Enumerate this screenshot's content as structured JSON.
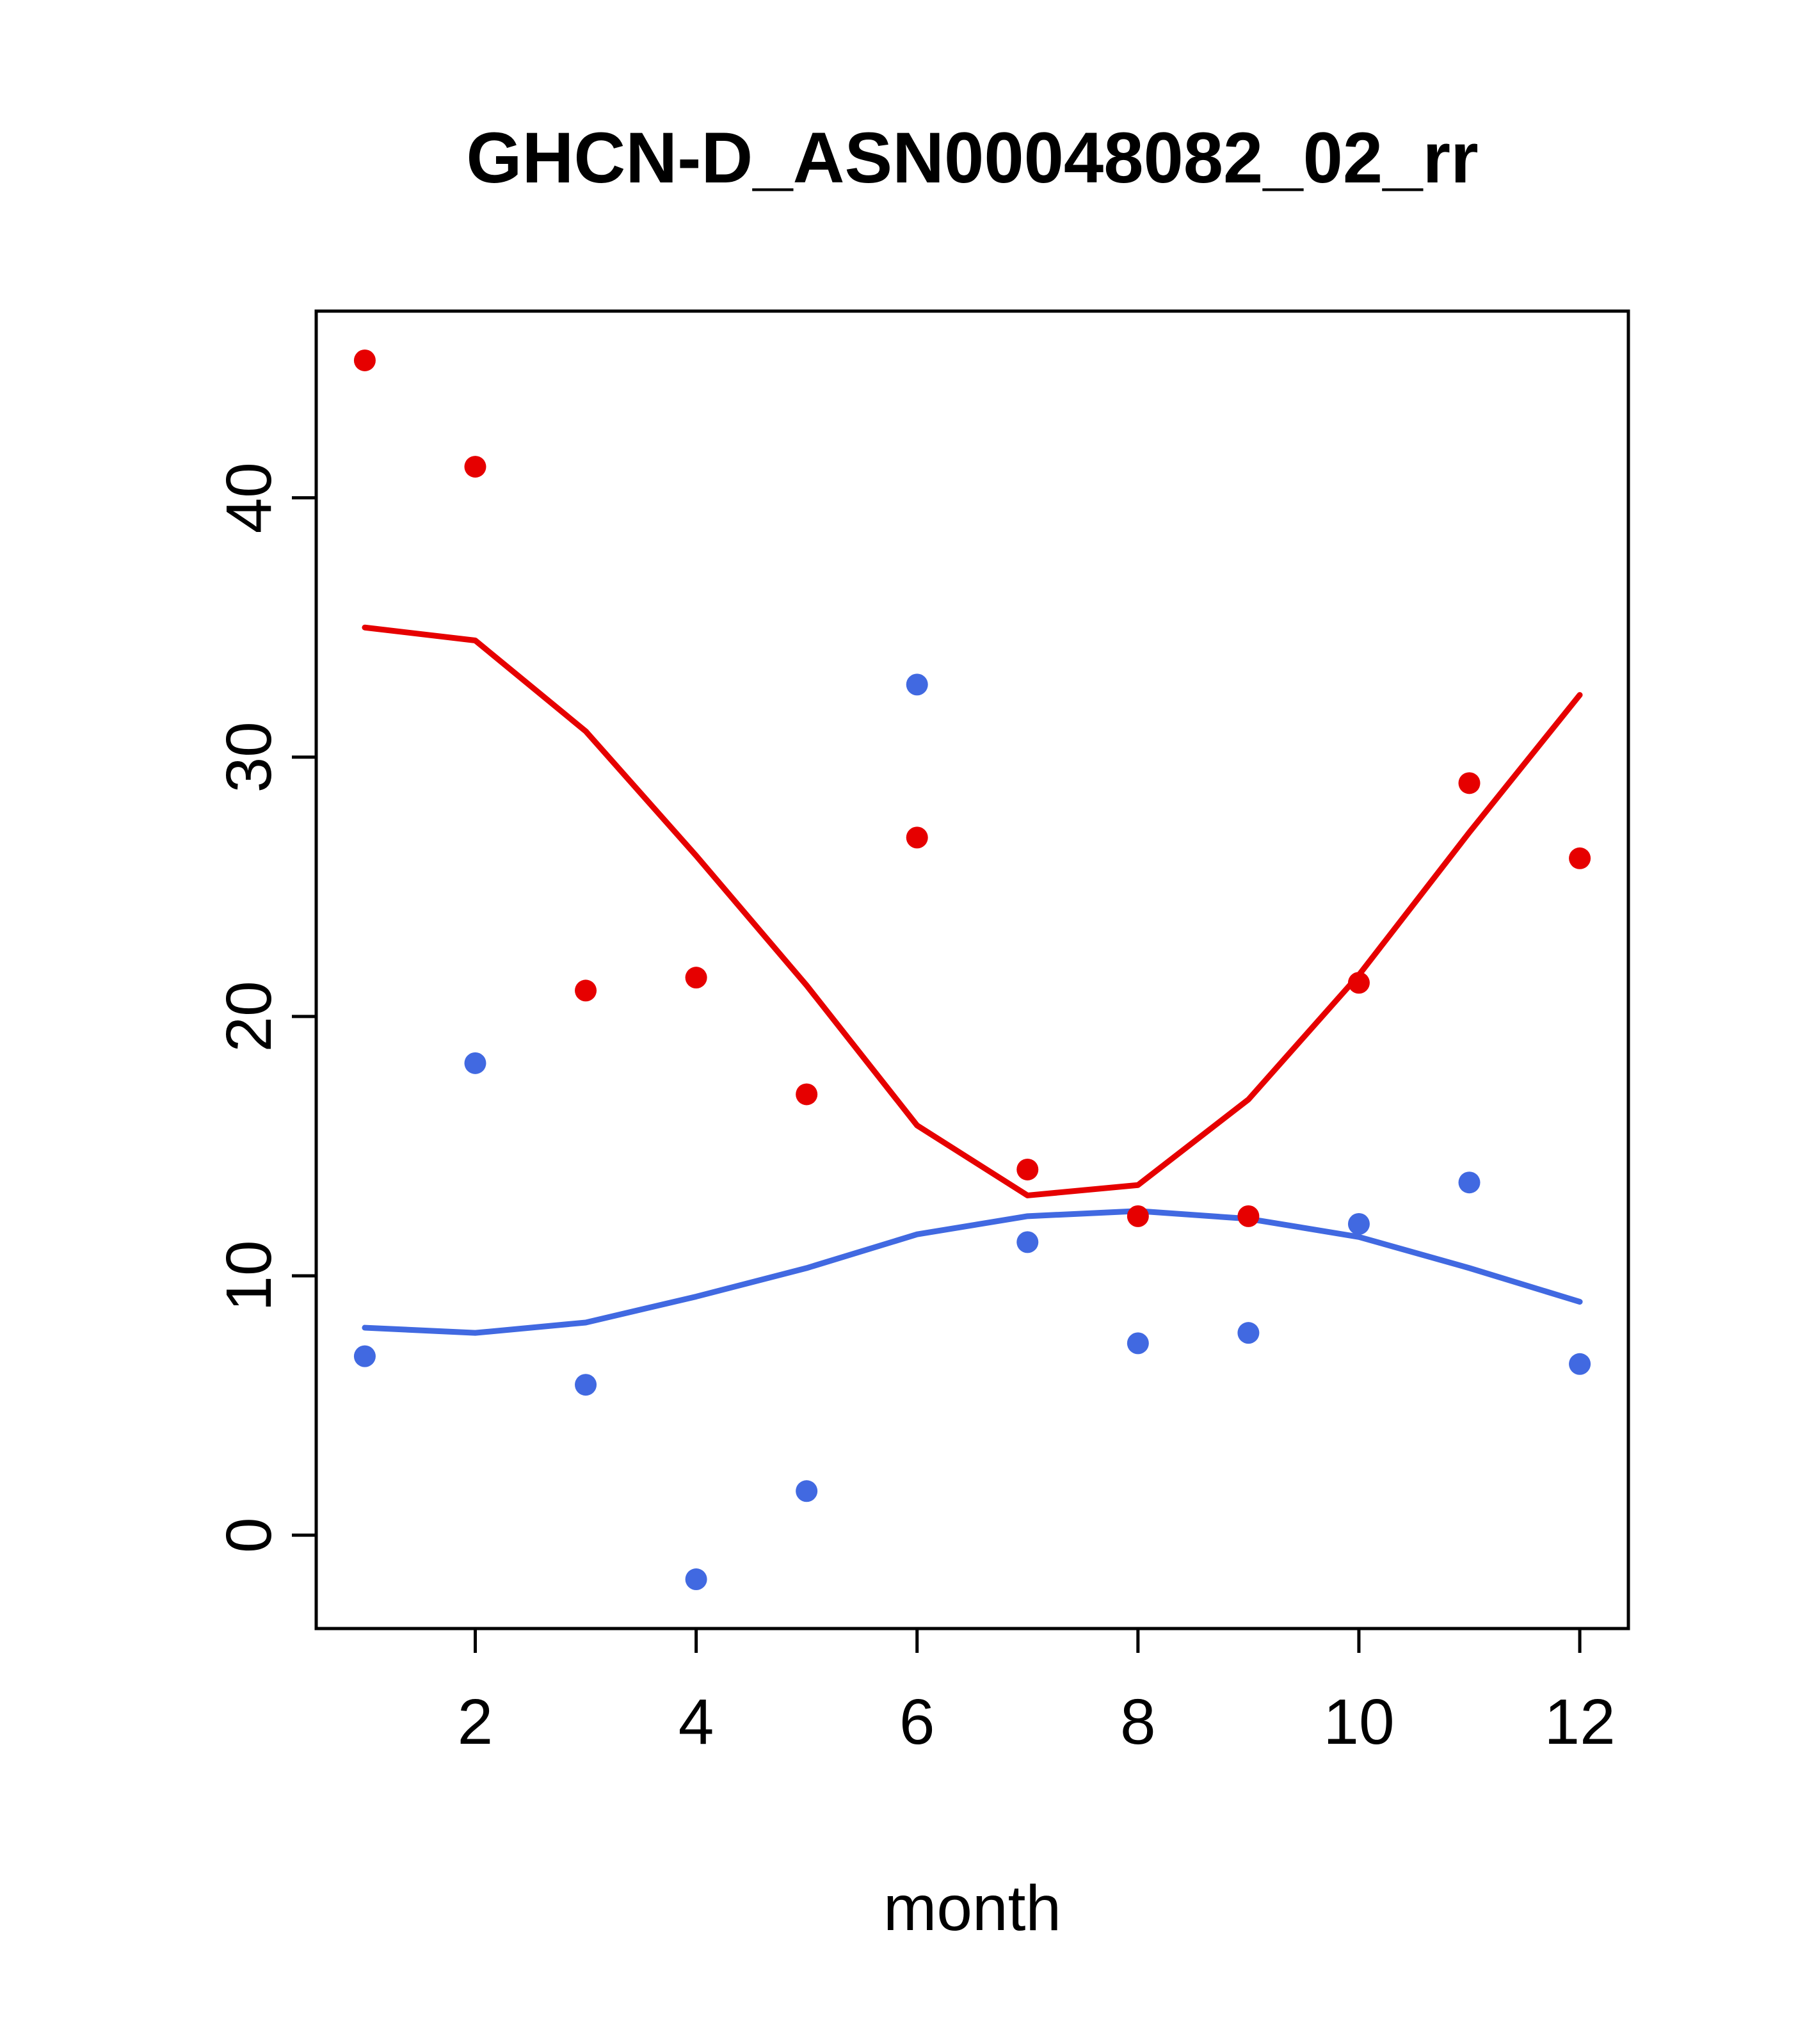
{
  "title": "GHCN-D_ASN00048082_02_rr",
  "chart_data": {
    "type": "scatter",
    "title": "GHCN-D_ASN00048082_02_rr",
    "xlabel": "month",
    "ylabel": "",
    "x_ticks": [
      2,
      4,
      6,
      8,
      10,
      12
    ],
    "y_ticks": [
      0,
      10,
      20,
      30,
      40
    ],
    "x_range": [
      0.56,
      12.44
    ],
    "y_range": [
      -3.6,
      47.2
    ],
    "grid": "off",
    "legend": "none",
    "months": [
      1,
      2,
      3,
      4,
      5,
      6,
      7,
      8,
      9,
      10,
      11,
      12
    ],
    "colors": {
      "red": "#e60000",
      "blue": "#4169e1"
    },
    "series": [
      {
        "name": "red-trend-line",
        "kind": "line",
        "color": "#e60000",
        "values": [
          35.0,
          34.5,
          31.0,
          26.2,
          21.2,
          15.8,
          13.1,
          13.5,
          16.8,
          21.6,
          27.1,
          32.4
        ]
      },
      {
        "name": "blue-trend-line",
        "kind": "line",
        "color": "#4169e1",
        "values": [
          8.0,
          7.8,
          8.2,
          9.2,
          10.3,
          11.6,
          12.3,
          12.5,
          12.2,
          11.5,
          10.3,
          9.0
        ]
      },
      {
        "name": "red-points",
        "kind": "points",
        "color": "#e60000",
        "values": [
          45.3,
          41.2,
          21.0,
          21.5,
          17.0,
          26.9,
          14.1,
          12.3,
          12.3,
          21.3,
          29.0,
          26.1
        ]
      },
      {
        "name": "blue-points",
        "kind": "points",
        "color": "#4169e1",
        "values": [
          6.9,
          18.2,
          5.8,
          -1.7,
          1.7,
          32.8,
          11.3,
          7.4,
          7.8,
          12.0,
          13.6,
          6.6
        ]
      }
    ]
  }
}
